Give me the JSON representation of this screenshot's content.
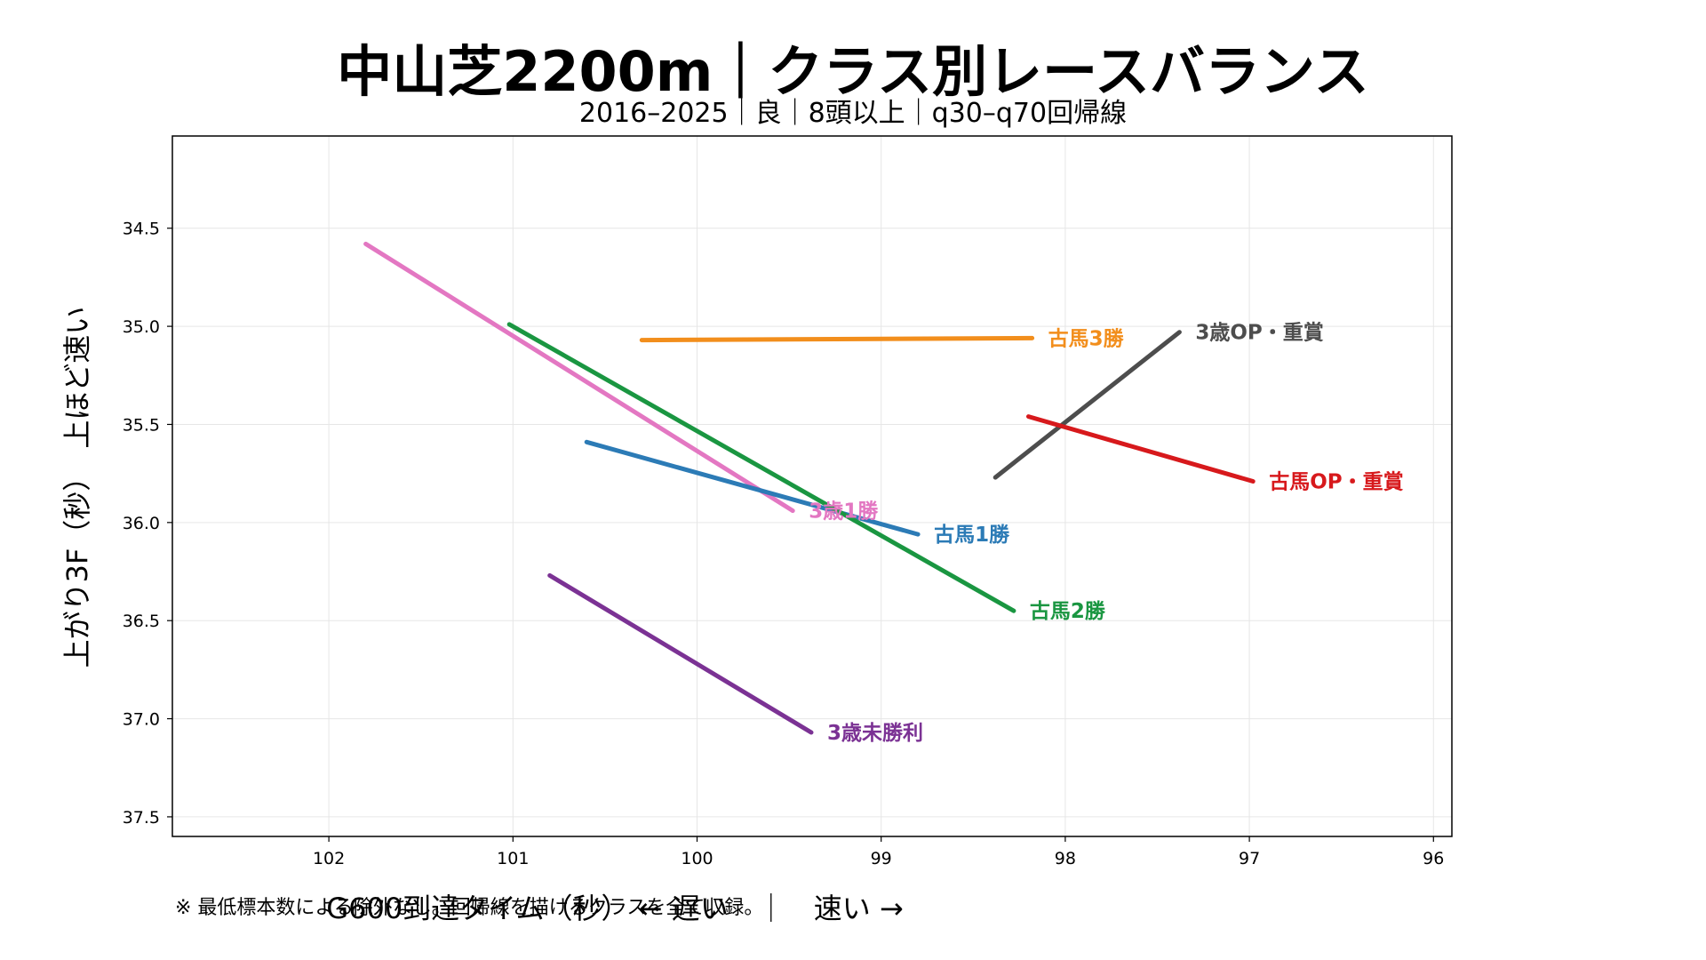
{
  "chart_data": {
    "type": "line",
    "title": "中山芝2200m｜クラス別レースバランス",
    "subtitle": "2016–2025｜良｜8頭以上｜q30–q70回帰線",
    "xlabel": "G600到達タイム（秒）  ←  遅い　｜　速い  →",
    "ylabel": "上がり3F（秒）　上ほど速い",
    "xlim": [
      102.85,
      95.9
    ],
    "ylim": [
      37.6,
      34.03
    ],
    "x_inverted": true,
    "y_inverted": true,
    "xticks": [
      102,
      101,
      100,
      99,
      98,
      97,
      96
    ],
    "yticks": [
      34.5,
      35.0,
      35.5,
      36.0,
      36.5,
      37.0,
      37.5
    ],
    "xtick_labels": [
      "102",
      "101",
      "100",
      "99",
      "98",
      "97",
      "96"
    ],
    "ytick_labels": [
      "34.5",
      "35.0",
      "35.5",
      "36.0",
      "36.5",
      "37.0",
      "37.5"
    ],
    "grid": true,
    "legend": "none (labels at line ends)",
    "series": [
      {
        "name": "3歳未勝利",
        "color": "#7b3294",
        "x": [
          100.8,
          99.38
        ],
        "y": [
          36.27,
          37.07
        ]
      },
      {
        "name": "3歳1勝",
        "color": "#e377c2",
        "x": [
          101.8,
          99.48
        ],
        "y": [
          34.58,
          35.94
        ]
      },
      {
        "name": "古馬1勝",
        "color": "#2c7bb6",
        "x": [
          100.6,
          98.8
        ],
        "y": [
          35.59,
          36.06
        ]
      },
      {
        "name": "古馬2勝",
        "color": "#1a9641",
        "x": [
          101.02,
          98.28
        ],
        "y": [
          34.99,
          36.45
        ]
      },
      {
        "name": "古馬3勝",
        "color": "#f28e1c",
        "x": [
          100.3,
          98.18
        ],
        "y": [
          35.07,
          35.06
        ]
      },
      {
        "name": "3歳OP・重賞",
        "color": "#4d4d4d",
        "x": [
          98.38,
          97.38
        ],
        "y": [
          35.77,
          35.03
        ]
      },
      {
        "name": "古馬OP・重賞",
        "color": "#d7191c",
        "x": [
          98.2,
          96.98
        ],
        "y": [
          35.46,
          35.79
        ]
      }
    ]
  },
  "footnote": "※ 最低標本数による除外なし。回帰線を描けるクラスを全て収録。"
}
